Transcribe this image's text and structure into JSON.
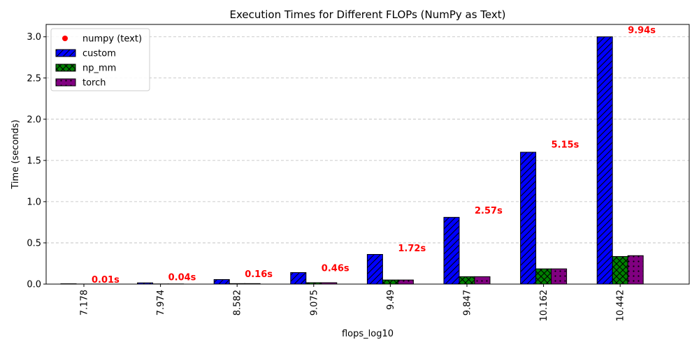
{
  "chart_data": {
    "type": "bar",
    "title": "Execution Times for Different FLOPs (NumPy as Text)",
    "xlabel": "flops_log10",
    "ylabel": "Time (seconds)",
    "ylim": [
      0,
      3.15
    ],
    "yticks": [
      "0.0",
      "0.5",
      "1.0",
      "1.5",
      "2.0",
      "2.5",
      "3.0"
    ],
    "grid": "y, dashed",
    "legend_position": "top-left",
    "categories": [
      "7.178",
      "7.974",
      "8.582",
      "9.075",
      "9.49",
      "9.847",
      "10.162",
      "10.442"
    ],
    "series": [
      {
        "name": "custom",
        "color": "#0000ff",
        "hatch": "diagonal",
        "values": [
          0.004,
          0.015,
          0.055,
          0.14,
          0.36,
          0.81,
          1.6,
          3.0
        ]
      },
      {
        "name": "np_mm",
        "color": "#008000",
        "hatch": "cross",
        "values": [
          0.001,
          0.002,
          0.006,
          0.017,
          0.05,
          0.09,
          0.185,
          0.335
        ]
      },
      {
        "name": "torch",
        "color": "#800080",
        "hatch": "dots",
        "values": [
          0.001,
          0.002,
          0.006,
          0.017,
          0.05,
          0.09,
          0.185,
          0.345
        ]
      }
    ],
    "text_series": {
      "name": "numpy (text)",
      "color": "#ff0000",
      "labels": [
        "0.01s",
        "0.04s",
        "0.16s",
        "0.46s",
        "1.72s",
        "2.57s",
        "5.15s",
        "9.94s"
      ],
      "label_y": [
        0.05,
        0.08,
        0.12,
        0.19,
        0.43,
        0.89,
        1.69,
        3.08
      ]
    }
  }
}
